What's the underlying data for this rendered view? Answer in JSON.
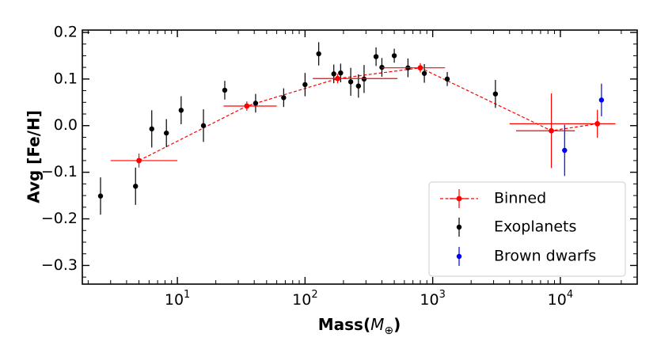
{
  "chart_data": {
    "type": "scatter",
    "xscale": "log",
    "xlim": [
      1.8,
      40000
    ],
    "ylim": [
      -0.34,
      0.205
    ],
    "xlabel": "Mass(",
    "xlabel_symbol": "M",
    "xlabel_subscript": "⊕",
    "xlabel_close": ")",
    "ylabel": "Avg [Fe/H]",
    "xticks": [
      {
        "value": 10,
        "base": "10",
        "exp": "1"
      },
      {
        "value": 100,
        "base": "10",
        "exp": "2"
      },
      {
        "value": 1000,
        "base": "10",
        "exp": "3"
      },
      {
        "value": 10000,
        "base": "10",
        "exp": "4"
      }
    ],
    "yticks": [
      {
        "value": 0.2,
        "label": "0.2"
      },
      {
        "value": 0.1,
        "label": "0.1"
      },
      {
        "value": 0.0,
        "label": "0.0"
      },
      {
        "value": -0.1,
        "label": "−0.1"
      },
      {
        "value": -0.2,
        "label": "−0.2"
      },
      {
        "value": -0.3,
        "label": "−0.3"
      }
    ],
    "colors": {
      "binned": "#ff0000",
      "exoplanets": "#000000",
      "brown_dwarfs": "#0000ff"
    },
    "legend_position": "lower-right",
    "series": [
      {
        "name": "Binned",
        "style": "line-errorbar",
        "x": [
          5.0,
          35.0,
          180.0,
          800.0,
          8500.0,
          19500.0
        ],
        "y": [
          -0.075,
          0.042,
          0.101,
          0.124,
          -0.011,
          0.004
        ],
        "xerr_low": [
          3.0,
          23.0,
          115.0,
          400.0,
          4500.0,
          4000.0
        ],
        "xerr_high": [
          10.0,
          60.0,
          530.0,
          1250.0,
          13000.0,
          27000.0
        ],
        "yerr": [
          0.015,
          0.01,
          0.01,
          0.01,
          0.08,
          0.03
        ]
      },
      {
        "name": "Exoplanets",
        "style": "errorbar",
        "x": [
          2.5,
          4.7,
          6.3,
          8.2,
          10.7,
          16,
          23.5,
          41,
          68,
          100,
          128,
          168,
          190,
          228,
          262,
          290,
          360,
          400,
          500,
          640,
          860,
          1300,
          3100
        ],
        "y": [
          -0.151,
          -0.13,
          -0.007,
          -0.016,
          0.033,
          0.0,
          0.076,
          0.048,
          0.06,
          0.088,
          0.154,
          0.111,
          0.113,
          0.094,
          0.085,
          0.1,
          0.148,
          0.125,
          0.15,
          0.124,
          0.112,
          0.1,
          0.068
        ],
        "yerr": [
          0.04,
          0.04,
          0.04,
          0.03,
          0.03,
          0.035,
          0.02,
          0.02,
          0.02,
          0.025,
          0.025,
          0.02,
          0.02,
          0.03,
          0.025,
          0.03,
          0.02,
          0.02,
          0.015,
          0.02,
          0.02,
          0.015,
          0.03
        ]
      },
      {
        "name": "Brown dwarfs",
        "style": "errorbar",
        "x": [
          10800,
          21000
        ],
        "y": [
          -0.053,
          0.055
        ],
        "yerr": [
          0.055,
          0.035
        ]
      }
    ]
  }
}
